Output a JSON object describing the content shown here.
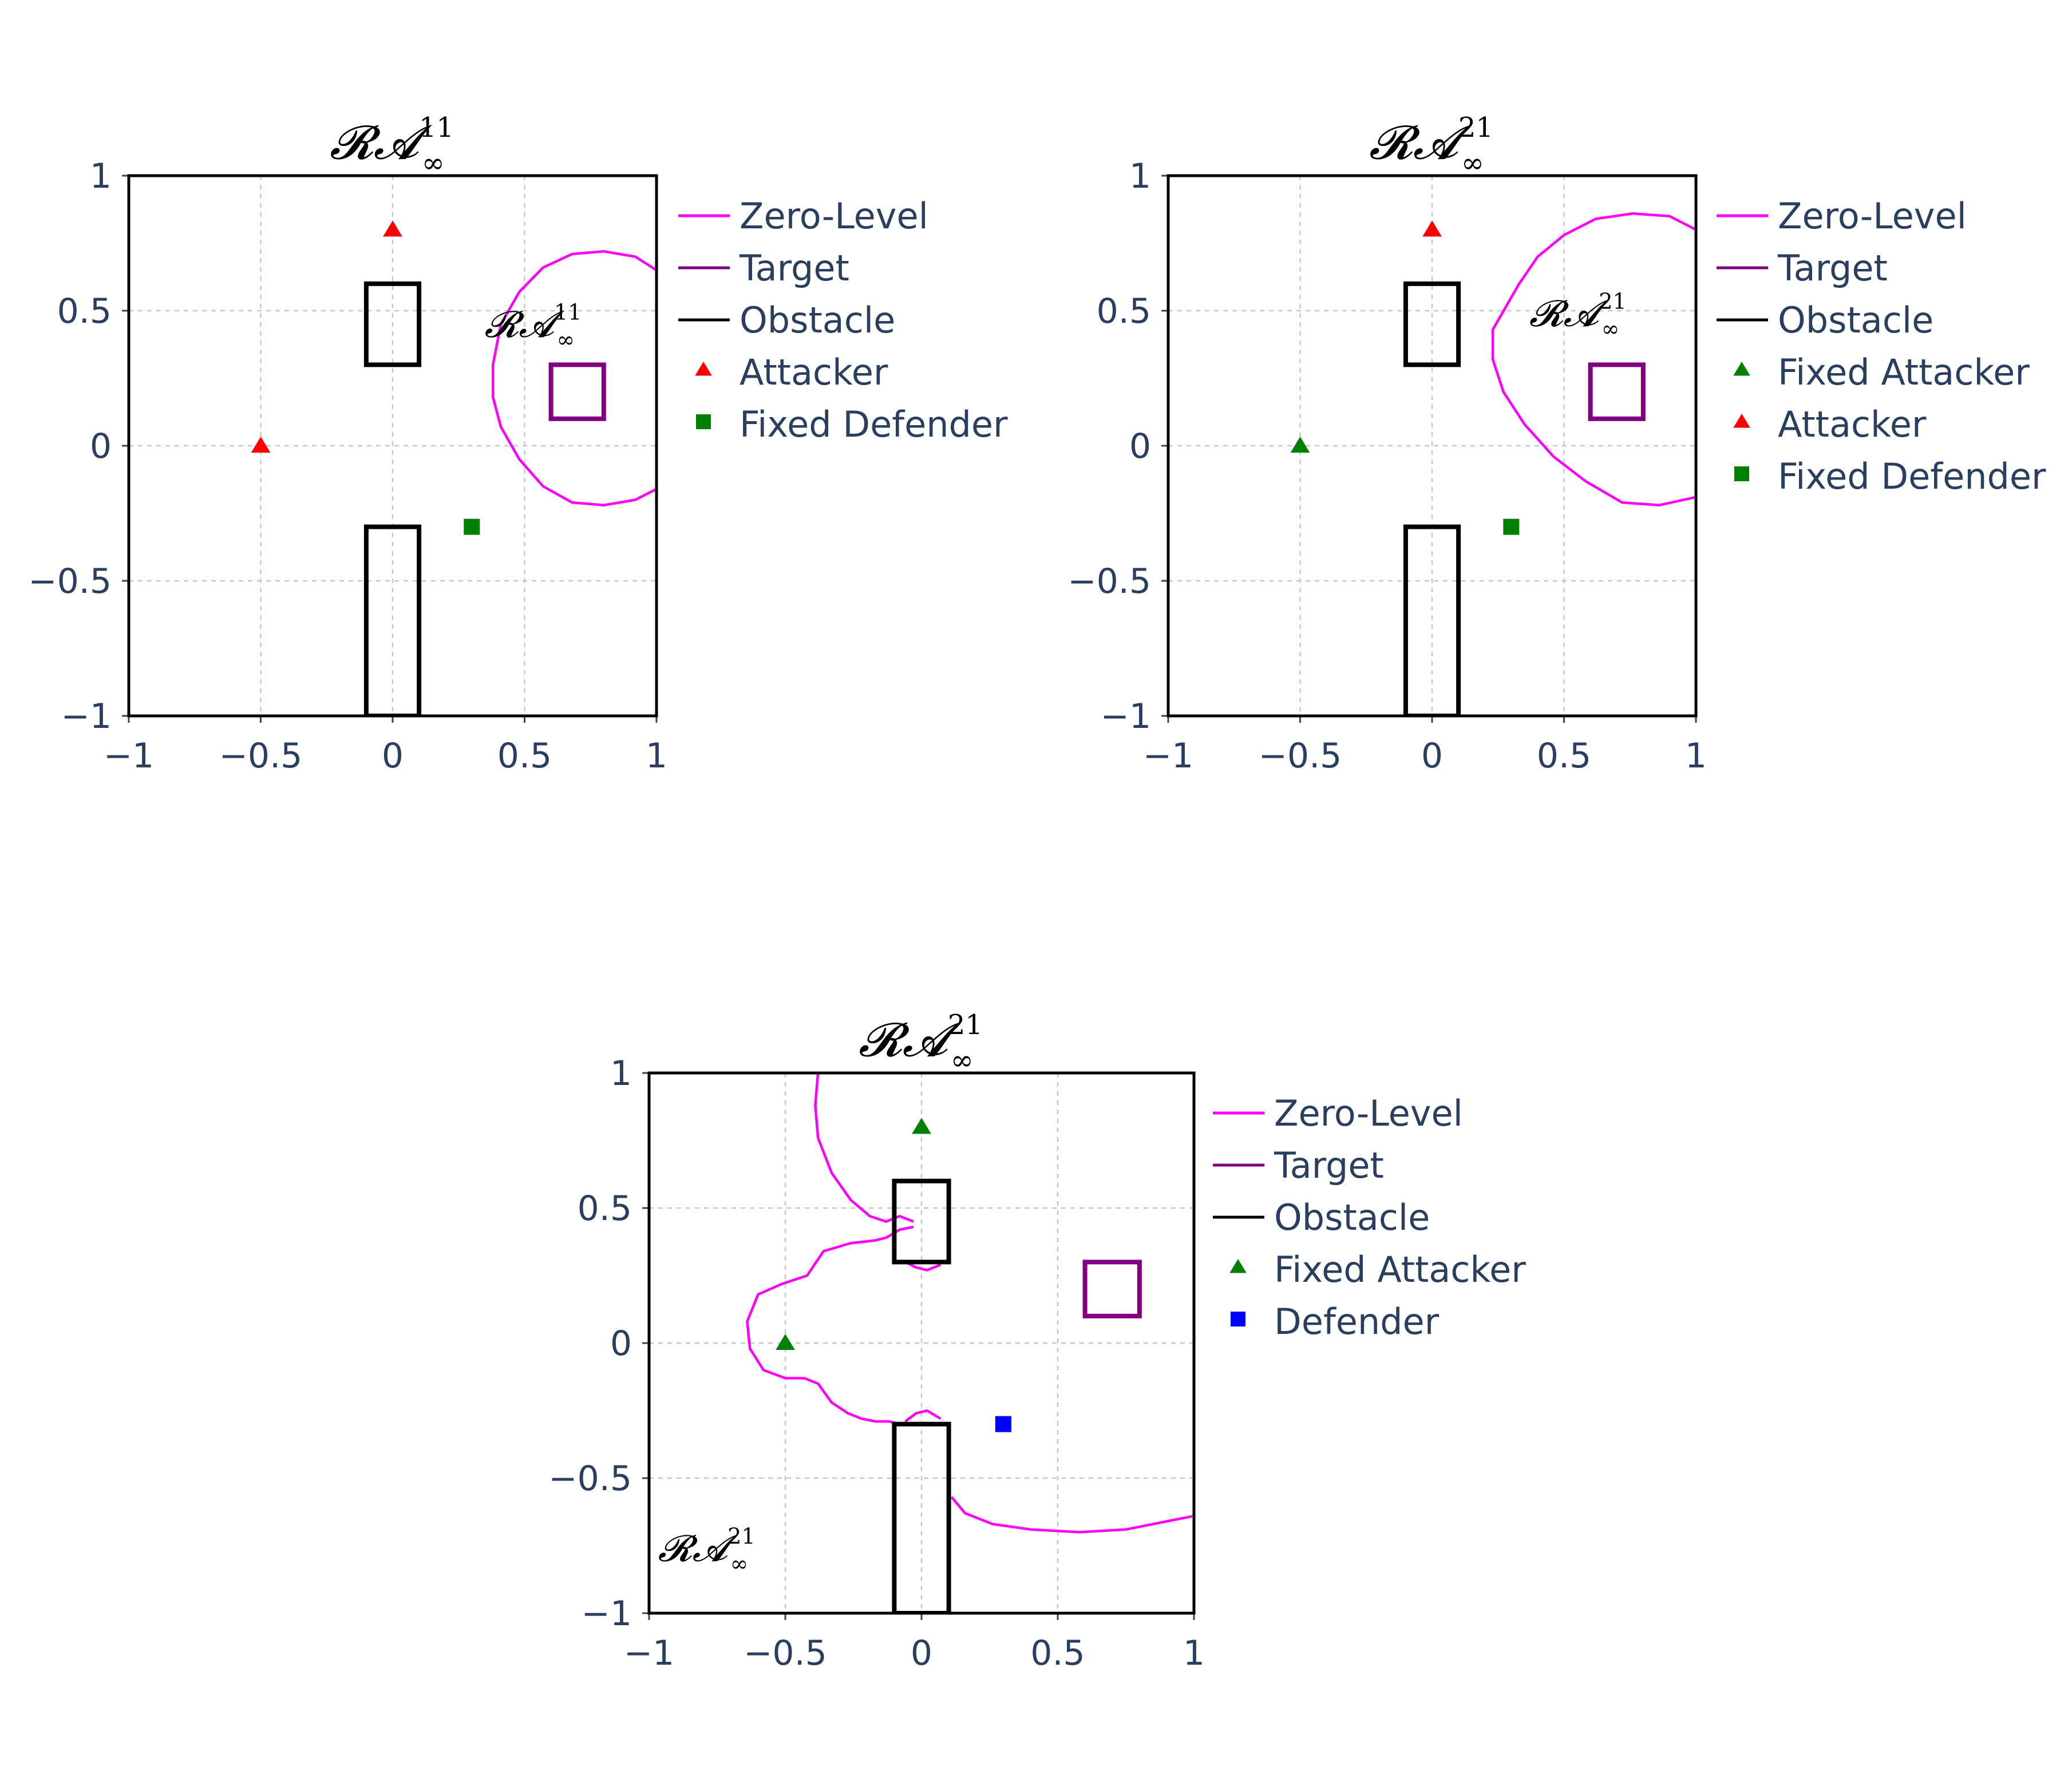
{
  "chart_data": [
    {
      "type": "scatter",
      "title": {
        "base": "𝓡𝓐",
        "sub": "∞",
        "sup": "11"
      },
      "xlim": [
        -1,
        1
      ],
      "ylim": [
        -1,
        1
      ],
      "xticks": [
        -1,
        -0.5,
        0,
        0.5,
        1
      ],
      "yticks": [
        -1,
        -0.5,
        0,
        0.5,
        1
      ],
      "xtick_labels": [
        "−1",
        "−0.5",
        "0",
        "0.5",
        "1"
      ],
      "ytick_labels": [
        "−1",
        "−0.5",
        "0",
        "0.5",
        "1"
      ],
      "grid": true,
      "legend_position": "right",
      "colors": {
        "zero_level": "#ff00ff",
        "target": "#800080",
        "obstacle": "#000000",
        "attacker": "#ff0000",
        "fixed_attacker": "#008000",
        "fixed_defender": "#008000",
        "defender": "#0000ff"
      },
      "annotation": {
        "base": "𝓡𝓐",
        "sub": "∞",
        "sup": "11",
        "x": 0.5,
        "y": 0.45
      },
      "series": [
        {
          "name": "Zero-Level",
          "kind": "line",
          "color": "#ff00ff",
          "x": [
            1.0,
            0.92,
            0.8,
            0.68,
            0.57,
            0.48,
            0.41,
            0.38,
            0.38,
            0.41,
            0.48,
            0.57,
            0.68,
            0.8,
            0.92,
            1.0
          ],
          "y": [
            0.65,
            0.7,
            0.72,
            0.71,
            0.66,
            0.57,
            0.45,
            0.3,
            0.18,
            0.07,
            -0.05,
            -0.15,
            -0.21,
            -0.22,
            -0.2,
            -0.16
          ]
        },
        {
          "name": "Target",
          "kind": "rect",
          "color": "#800080",
          "x": [
            0.6,
            0.8
          ],
          "y": [
            0.1,
            0.3
          ]
        },
        {
          "name": "Obstacle",
          "kind": "rects",
          "color": "#000000",
          "rects": [
            {
              "x": [
                -0.1,
                0.1
              ],
              "y": [
                0.3,
                0.6
              ]
            },
            {
              "x": [
                -0.1,
                0.1
              ],
              "y": [
                -1.0,
                -0.3
              ]
            }
          ]
        },
        {
          "name": "Attacker",
          "kind": "marker",
          "marker": "triangle",
          "color": "#ff0000",
          "x": [
            0.0,
            -0.5
          ],
          "y": [
            0.8,
            0.0
          ]
        },
        {
          "name": "Fixed Defender",
          "kind": "marker",
          "marker": "square",
          "color": "#008000",
          "x": [
            0.3
          ],
          "y": [
            -0.3
          ]
        }
      ]
    },
    {
      "type": "scatter",
      "title": {
        "base": "𝓡𝓐",
        "sub": "∞",
        "sup": "21"
      },
      "xlim": [
        -1,
        1
      ],
      "ylim": [
        -1,
        1
      ],
      "xticks": [
        -1,
        -0.5,
        0,
        0.5,
        1
      ],
      "yticks": [
        -1,
        -0.5,
        0,
        0.5,
        1
      ],
      "xtick_labels": [
        "−1",
        "−0.5",
        "0",
        "0.5",
        "1"
      ],
      "ytick_labels": [
        "−1",
        "−0.5",
        "0",
        "0.5",
        "1"
      ],
      "grid": true,
      "legend_position": "right",
      "annotation": {
        "base": "𝓡𝓐",
        "sub": "∞",
        "sup": "21",
        "x": 0.52,
        "y": 0.49
      },
      "series": [
        {
          "name": "Zero-Level",
          "kind": "line",
          "color": "#ff00ff",
          "x": [
            1.0,
            0.9,
            0.76,
            0.62,
            0.5,
            0.4,
            0.33,
            0.23,
            0.23,
            0.27,
            0.35,
            0.46,
            0.58,
            0.72,
            0.86,
            1.0
          ],
          "y": [
            0.8,
            0.85,
            0.86,
            0.84,
            0.78,
            0.7,
            0.6,
            0.43,
            0.32,
            0.2,
            0.08,
            -0.04,
            -0.13,
            -0.21,
            -0.22,
            -0.19
          ]
        },
        {
          "name": "Target",
          "kind": "rect",
          "color": "#800080",
          "x": [
            0.6,
            0.8
          ],
          "y": [
            0.1,
            0.3
          ]
        },
        {
          "name": "Obstacle",
          "kind": "rects",
          "color": "#000000",
          "rects": [
            {
              "x": [
                -0.1,
                0.1
              ],
              "y": [
                0.3,
                0.6
              ]
            },
            {
              "x": [
                -0.1,
                0.1
              ],
              "y": [
                -1.0,
                -0.3
              ]
            }
          ]
        },
        {
          "name": "Fixed Attacker",
          "kind": "marker",
          "marker": "triangle",
          "color": "#008000",
          "x": [
            -0.5
          ],
          "y": [
            0.0
          ]
        },
        {
          "name": "Attacker",
          "kind": "marker",
          "marker": "triangle",
          "color": "#ff0000",
          "x": [
            0.0
          ],
          "y": [
            0.8
          ]
        },
        {
          "name": "Fixed Defender",
          "kind": "marker",
          "marker": "square",
          "color": "#008000",
          "x": [
            0.3
          ],
          "y": [
            -0.3
          ]
        }
      ]
    },
    {
      "type": "scatter",
      "title": {
        "base": "𝓡𝓐",
        "sub": "∞",
        "sup": "21"
      },
      "xlim": [
        -1,
        1
      ],
      "ylim": [
        -1,
        1
      ],
      "xticks": [
        -1,
        -0.5,
        0,
        0.5,
        1
      ],
      "yticks": [
        -1,
        -0.5,
        0,
        0.5,
        1
      ],
      "xtick_labels": [
        "−1",
        "−0.5",
        "0",
        "0.5",
        "1"
      ],
      "ytick_labels": [
        "−1",
        "−0.5",
        "0",
        "0.5",
        "1"
      ],
      "grid": true,
      "legend_position": "right",
      "annotation": {
        "base": "𝓡𝓐",
        "sub": "∞",
        "sup": "21",
        "x": -0.82,
        "y": -0.76
      },
      "series": [
        {
          "name": "Zero-Level",
          "kind": "lines",
          "color": "#ff00ff",
          "paths": [
            {
              "x": [
                -0.38,
                -0.39,
                -0.38,
                -0.33,
                -0.26,
                -0.19,
                -0.13,
                -0.08,
                -0.03
              ],
              "y": [
                1.0,
                0.88,
                0.76,
                0.63,
                0.53,
                0.47,
                0.45,
                0.47,
                0.45
              ]
            },
            {
              "x": [
                -0.03,
                -0.08,
                -0.13,
                -0.17,
                -0.26,
                -0.36,
                -0.42,
                -0.51,
                -0.6,
                -0.64,
                -0.63,
                -0.58,
                -0.5,
                -0.43,
                -0.38,
                -0.33,
                -0.27,
                -0.22,
                -0.17,
                -0.12,
                -0.08,
                -0.06
              ],
              "y": [
                0.43,
                0.42,
                0.39,
                0.38,
                0.37,
                0.34,
                0.25,
                0.22,
                0.18,
                0.08,
                -0.02,
                -0.1,
                -0.13,
                -0.13,
                -0.15,
                -0.22,
                -0.26,
                -0.28,
                -0.29,
                -0.29,
                -0.3,
                -0.3
              ]
            },
            {
              "x": [
                -0.06,
                -0.02,
                0.02,
                0.07
              ],
              "y": [
                0.3,
                0.28,
                0.27,
                0.29
              ]
            },
            {
              "x": [
                -0.06,
                -0.02,
                0.02,
                0.07
              ],
              "y": [
                -0.29,
                -0.26,
                -0.25,
                -0.28
              ]
            },
            {
              "x": [
                0.11,
                0.16,
                0.26,
                0.4,
                0.58,
                0.75,
                0.9,
                1.0
              ],
              "y": [
                -0.57,
                -0.63,
                -0.67,
                -0.69,
                -0.7,
                -0.69,
                -0.66,
                -0.64
              ]
            }
          ]
        },
        {
          "name": "Target",
          "kind": "rect",
          "color": "#800080",
          "x": [
            0.6,
            0.8
          ],
          "y": [
            0.1,
            0.3
          ]
        },
        {
          "name": "Obstacle",
          "kind": "rects",
          "color": "#000000",
          "rects": [
            {
              "x": [
                -0.1,
                0.1
              ],
              "y": [
                0.3,
                0.6
              ]
            },
            {
              "x": [
                -0.1,
                0.1
              ],
              "y": [
                -1.0,
                -0.3
              ]
            }
          ]
        },
        {
          "name": "Fixed Attacker",
          "kind": "marker",
          "marker": "triangle",
          "color": "#008000",
          "x": [
            0.0,
            -0.5
          ],
          "y": [
            0.8,
            0.0
          ]
        },
        {
          "name": "Defender",
          "kind": "marker",
          "marker": "square",
          "color": "#0000ff",
          "x": [
            0.3
          ],
          "y": [
            -0.3
          ]
        }
      ]
    }
  ]
}
